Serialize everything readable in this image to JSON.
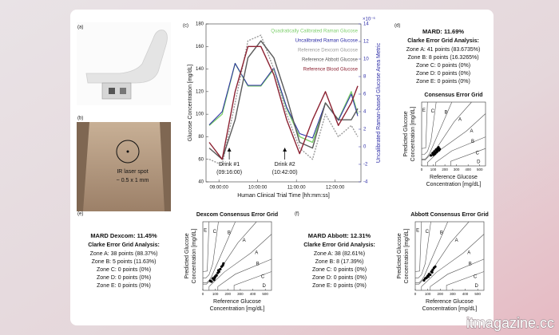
{
  "panel_labels": [
    "(a)",
    "(b)",
    "(c)",
    "(d)",
    "(e)",
    "(f)"
  ],
  "photo_b": {
    "annotation": [
      "IR laser spot",
      "~ 0.5 x 1 mm"
    ]
  },
  "stats": [
    {
      "mard": "MARD: 11.69%",
      "heading": "Clarke Error Grid Analysis:",
      "zones": [
        "Zone A: 41 points (83.6735%)",
        "Zone B: 8 points (16.3265%)",
        "Zone C: 0 points (0%)",
        "Zone D: 0 points (0%)",
        "Zone E: 0 points (0%)"
      ]
    },
    {
      "mard": "MARD Dexcom: 11.45%",
      "heading": "Clarke Error Grid Analysis:",
      "zones": [
        "Zone A: 38 points (88.37%)",
        "Zone B: 5 points (11.63%)",
        "Zone C: 0 points (0%)",
        "Zone D: 0 points (0%)",
        "Zone E: 0 points (0%)"
      ]
    },
    {
      "mard": "MARD Abbott: 12.31%",
      "heading": "Clarke Error Grid Analysis:",
      "zones": [
        "Zone A: 38 (82.61%)",
        "Zone B: 8 (17.39%)",
        "Zone C: 0 points (0%)",
        "Zone D: 0 points (0%)",
        "Zone E: 0 points (0%)"
      ]
    }
  ],
  "chart_data": [
    {
      "type": "line",
      "xlabel": "Human Clinical Trial Time [hh:mm:ss]",
      "ylabel": "Glucose Concentration [mg/dL]",
      "y2label": "Uncalibrated Raman-based Glucose Area Metric",
      "y2_exponent": "×10⁻⁶",
      "x": [
        525,
        545,
        565,
        585,
        605,
        625,
        645,
        665,
        685,
        705,
        725,
        745,
        755
      ],
      "xlim": [
        520,
        760
      ],
      "xticks": [
        {
          "value": 540,
          "label": "09:00:00"
        },
        {
          "value": 600,
          "label": "10:00:00"
        },
        {
          "value": 660,
          "label": "11:00:00"
        },
        {
          "value": 720,
          "label": "12:00:00"
        }
      ],
      "ylim": [
        40,
        180
      ],
      "yticks": [
        40,
        60,
        80,
        100,
        120,
        140,
        160,
        180
      ],
      "y2lim": [
        -4,
        14
      ],
      "y2ticks": [
        -4,
        -2,
        0,
        2,
        4,
        6,
        8,
        10,
        12,
        14
      ],
      "series": [
        {
          "name": "Quadratically Calibrated Raman Glucose",
          "color": "#7dcf6b",
          "values": [
            90,
            100,
            145,
            125,
            125,
            140,
            105,
            80,
            75,
            110,
            95,
            120,
            100
          ]
        },
        {
          "name": "Uncalibrated Raman Glucose",
          "color": "#2b2ba6",
          "axis": "y2",
          "values": [
            2.5,
            4,
            9.5,
            7,
            7,
            9,
            4.5,
            1.5,
            1,
            5,
            3,
            6,
            3.5
          ]
        },
        {
          "name": "Reference Dexcom Glucose",
          "color": "#9a9a9a",
          "dashed": true,
          "values": [
            60,
            55,
            110,
            165,
            170,
            140,
            100,
            70,
            60,
            100,
            80,
            90,
            80
          ]
        },
        {
          "name": "Reference Abbott Glucose",
          "color": "#5a5a5a",
          "values": [
            70,
            60,
            95,
            150,
            165,
            150,
            115,
            75,
            70,
            110,
            95,
            95,
            105
          ]
        },
        {
          "name": "Reference Blood Glucose",
          "color": "#8c2232",
          "values": [
            75,
            60,
            120,
            160,
            160,
            135,
            95,
            65,
            95,
            120,
            90,
            110,
            125
          ]
        }
      ],
      "annotations": [
        {
          "x": 556,
          "text": [
            "Drink #1",
            "(09:16:00)"
          ]
        },
        {
          "x": 642,
          "text": [
            "Drink #2",
            "(10:42:00)"
          ]
        }
      ]
    },
    {
      "type": "scatter",
      "title": "Consensus Error Grid",
      "xlabel": [
        "Reference Glucose",
        "Concentration [mg/dL]"
      ],
      "ylabel": [
        "Predicted Glucose",
        "Concentration [mg/dL]"
      ],
      "xlim": [
        0,
        550
      ],
      "ylim": [
        0,
        550
      ],
      "xticks": [
        0,
        100,
        200,
        300,
        400,
        500
      ],
      "zone_labels": [
        "E",
        "C",
        "B",
        "A",
        "A",
        "B",
        "C",
        "D"
      ],
      "color": "#000000",
      "x": [
        80,
        95,
        105,
        110,
        120,
        125,
        130,
        135,
        140,
        150,
        155,
        100,
        115,
        145
      ],
      "y": [
        90,
        110,
        100,
        125,
        115,
        140,
        120,
        130,
        150,
        135,
        145,
        95,
        105,
        160
      ]
    },
    {
      "type": "scatter",
      "title": "Dexcom Consensus Error Grid",
      "xlabel": [
        "Reference Glucose",
        "Concentration [mg/dL]"
      ],
      "ylabel": [
        "Predicted Glucose",
        "Concentration [mg/dL]"
      ],
      "xlim": [
        0,
        550
      ],
      "ylim": [
        0,
        550
      ],
      "xticks": [
        0,
        100,
        200,
        300,
        400,
        500
      ],
      "zone_labels": [
        "E",
        "C",
        "B",
        "A",
        "A",
        "B",
        "C",
        "D"
      ],
      "color": "#000000",
      "x": [
        60,
        70,
        80,
        90,
        100,
        110,
        120,
        130,
        140,
        150,
        160,
        165,
        95,
        125
      ],
      "y": [
        75,
        70,
        95,
        85,
        110,
        120,
        140,
        150,
        170,
        190,
        200,
        215,
        100,
        160
      ]
    },
    {
      "type": "scatter",
      "title": "Abbott Consensus Error Grid",
      "xlabel": [
        "Reference Glucose",
        "Concentration [mg/dL]"
      ],
      "ylabel": [
        "Predicted Glucose",
        "Concentration [mg/dL]"
      ],
      "xlim": [
        0,
        550
      ],
      "ylim": [
        0,
        550
      ],
      "xticks": [
        0,
        100,
        200,
        300,
        400,
        500
      ],
      "zone_labels": [
        "E",
        "C",
        "B",
        "A",
        "A",
        "B",
        "C",
        "D"
      ],
      "color": "#000000",
      "x": [
        70,
        80,
        90,
        100,
        110,
        120,
        130,
        140,
        150,
        160,
        105,
        135
      ],
      "y": [
        80,
        95,
        100,
        115,
        130,
        125,
        150,
        165,
        180,
        190,
        110,
        145
      ]
    }
  ],
  "watermark": "itmagazine.cc"
}
